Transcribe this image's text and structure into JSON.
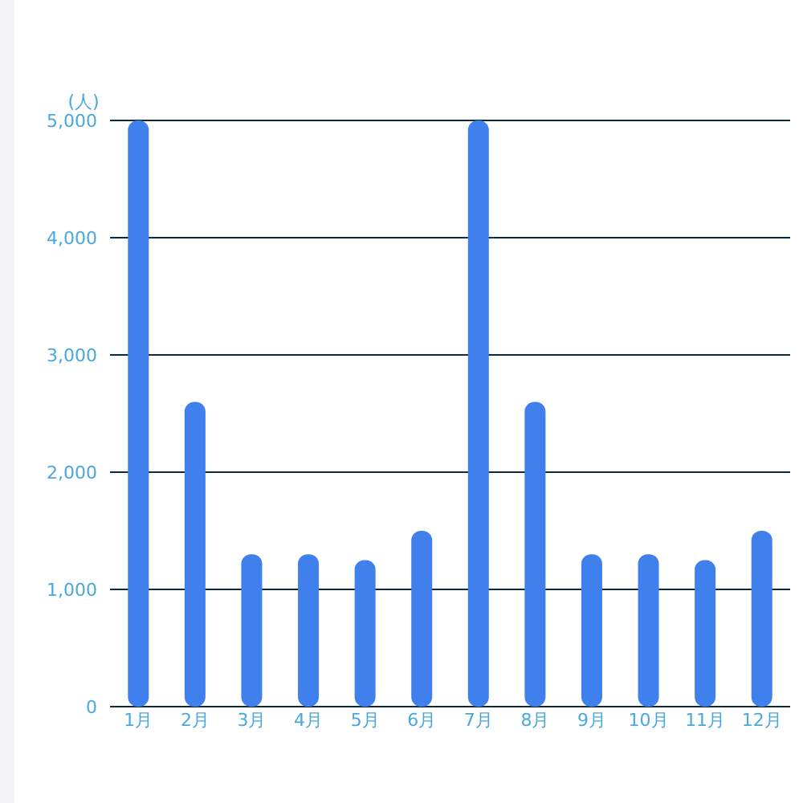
{
  "chart_data": {
    "type": "bar",
    "ylabel": "(人)",
    "categories": [
      "1月",
      "2月",
      "3月",
      "4月",
      "5月",
      "6月",
      "7月",
      "8月",
      "9月",
      "10月",
      "11月",
      "12月"
    ],
    "values": [
      5000,
      2600,
      1300,
      1300,
      1250,
      1500,
      5000,
      2600,
      1300,
      1300,
      1250,
      1500
    ],
    "color": "#3f80ec",
    "ylim": [
      0,
      5000
    ],
    "yticks": [
      0,
      {
        "value": 1000,
        "label": "1,000"
      },
      {
        "value": 2000,
        "label": "2,000"
      },
      {
        "value": 3000,
        "label": "3,000"
      },
      {
        "value": 4000,
        "label": "4,000"
      },
      {
        "value": 5000,
        "label": "5,000"
      }
    ],
    "grid": "y"
  }
}
